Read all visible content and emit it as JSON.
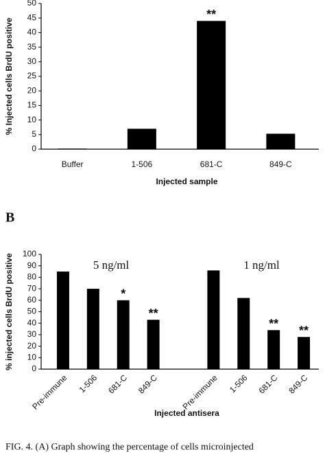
{
  "chart_data": [
    {
      "type": "bar",
      "y_label": "% Injected cells BrdU positive",
      "x_label": "Injected sample",
      "categories": [
        "Buffer",
        "1-506",
        "681-C",
        "849-C"
      ],
      "values": [
        0.2,
        7,
        44,
        5.3
      ],
      "marks": [
        null,
        null,
        "**",
        null
      ],
      "color": "#000000",
      "ylim": [
        0,
        50
      ],
      "yticks": [
        0,
        5,
        10,
        15,
        20,
        25,
        30,
        35,
        40,
        45,
        50
      ]
    },
    {
      "type": "bar",
      "y_label": "% injected cells BrdU positive",
      "x_label": "Injected antisera",
      "groups": [
        {
          "label": "5 ng/ml",
          "categories": [
            "Pre-immune",
            "1-506",
            "681-C",
            "849-C"
          ],
          "values": [
            85,
            70,
            60,
            43
          ],
          "marks": [
            null,
            null,
            "*",
            "**"
          ]
        },
        {
          "label": "1 ng/ml",
          "categories": [
            "Pre-immune",
            "1-506",
            "681-C",
            "849-C"
          ],
          "values": [
            86,
            62,
            34,
            28
          ],
          "marks": [
            null,
            null,
            "**",
            "**"
          ]
        }
      ],
      "color": "#000000",
      "ylim": [
        0,
        100
      ],
      "yticks": [
        0,
        10,
        20,
        30,
        40,
        50,
        60,
        70,
        80,
        90,
        100
      ]
    }
  ],
  "panel_label": "B",
  "caption": "FIG. 4. (A) Graph showing the percentage of cells microinjected"
}
